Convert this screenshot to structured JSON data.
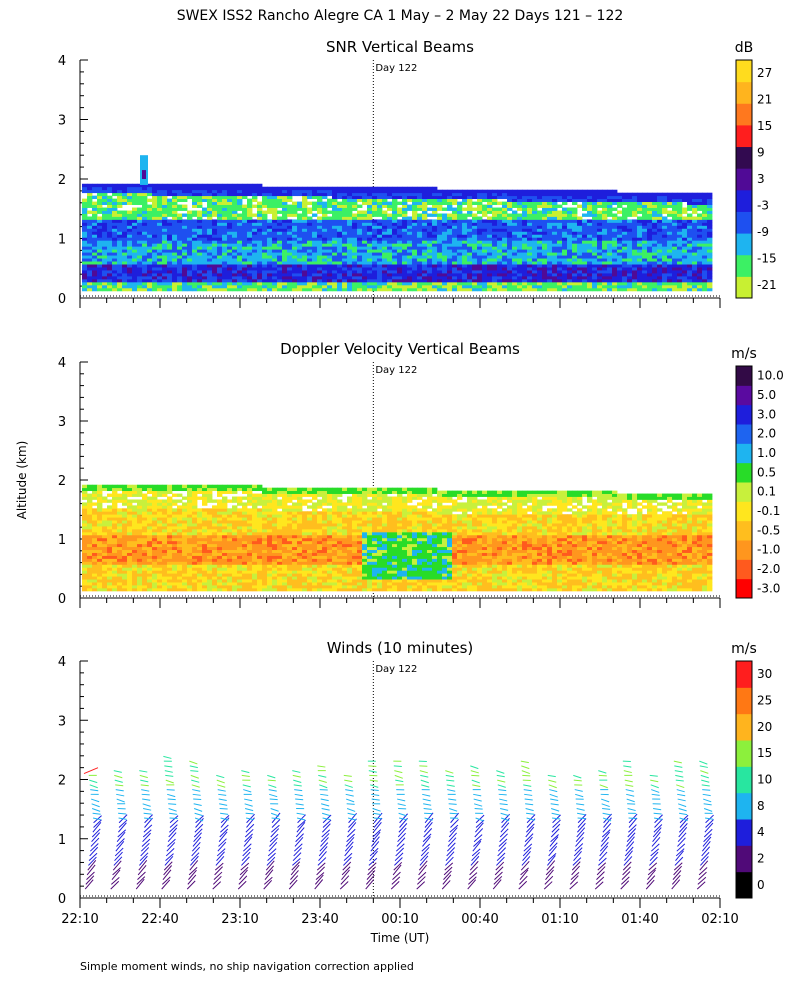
{
  "title": "SWEX ISS2 Rancho Alegre CA    1 May –  2 May 22 Days 121 – 122",
  "y_axis_label": "Altitude (km)",
  "x_axis_label": "Time (UT)",
  "footnote": "Simple moment winds, no ship navigation correction applied",
  "chart_data": [
    {
      "type": "heatmap",
      "title": "SNR Vertical Beams",
      "units": "dB",
      "ylim": [
        0,
        4
      ],
      "yticks": [
        "0",
        "1",
        "2",
        "3",
        "4"
      ],
      "day_marker": "Day 122",
      "colorbar_labels": [
        "-21",
        "-15",
        "-9",
        "-3",
        "3",
        "9",
        "15",
        "21",
        "27"
      ],
      "colorbar_colors": [
        "#c8f032",
        "#3cf064",
        "#1eb4f0",
        "#1e50f0",
        "#1e1edc",
        "#500a96",
        "#320a50",
        "#ff1e1e",
        "#ff781e",
        "#ffb41e",
        "#ffdc1e"
      ]
    },
    {
      "type": "heatmap",
      "title": "Doppler Velocity Vertical Beams",
      "units": "m/s",
      "ylim": [
        0,
        4
      ],
      "yticks": [
        "0",
        "1",
        "2",
        "3",
        "4"
      ],
      "day_marker": "Day 122",
      "colorbar_labels": [
        "-3.0",
        "-2.0",
        "-1.0",
        "-0.5",
        "-0.1",
        "0.1",
        "0.5",
        "1.0",
        "2.0",
        "3.0",
        "5.0",
        "10.0"
      ],
      "colorbar_colors": [
        "#ff0000",
        "#ff5a1e",
        "#ff961e",
        "#ffbe1e",
        "#ffe61e",
        "#c8f03c",
        "#28dc28",
        "#1eb4f0",
        "#1e64f0",
        "#1e1edc",
        "#5a0aa0",
        "#320a46"
      ]
    },
    {
      "type": "scatter",
      "title": "Winds (10 minutes)",
      "units": "m/s",
      "ylim": [
        0,
        4
      ],
      "yticks": [
        "0",
        "1",
        "2",
        "3",
        "4"
      ],
      "day_marker": "Day 122",
      "colorbar_labels": [
        "0",
        "2",
        "4",
        "8",
        "10",
        "15",
        "20",
        "25",
        "30"
      ],
      "colorbar_colors": [
        "#000000",
        "#500a78",
        "#1e1edc",
        "#1eb4f0",
        "#28e6a0",
        "#8cf03c",
        "#ffb41e",
        "#ff7814",
        "#ff1e1e"
      ],
      "xticks": [
        "22:10",
        "22:40",
        "23:10",
        "23:40",
        "00:10",
        "00:40",
        "01:10",
        "01:40",
        "02:10"
      ],
      "xlim_minutes": [
        0,
        240
      ],
      "day_marker_minutes": 110
    }
  ]
}
